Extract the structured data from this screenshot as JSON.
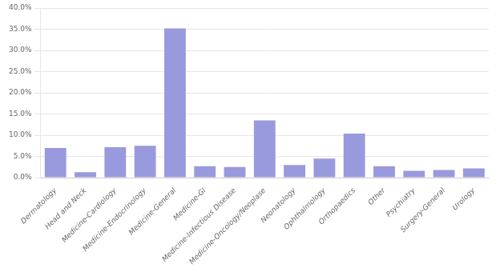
{
  "chart_data": {
    "type": "bar",
    "categories": [
      "Dermatology",
      "Head and Neck",
      "Medicine-Cardiology",
      "Medicine-Endocrinology",
      "Medicine-General",
      "Medicine-GI",
      "Medicine-Infectious Disease",
      "Medicine-Oncology/Neoplase",
      "Neonatology",
      "Ophthalmology",
      "Orthopaedics",
      "Other",
      "Psychiatry",
      "Surgery-General",
      "Urology"
    ],
    "values": [
      0.07,
      0.013,
      0.072,
      0.075,
      0.352,
      0.027,
      0.025,
      0.135,
      0.03,
      0.045,
      0.104,
      0.027,
      0.016,
      0.018,
      0.022
    ],
    "color": "#9999dd",
    "ylim": [
      0,
      0.4
    ],
    "yticks": [
      {
        "value": 0.0,
        "label": "0.0%"
      },
      {
        "value": 0.05,
        "label": "5.0%"
      },
      {
        "value": 0.1,
        "label": "10.0%"
      },
      {
        "value": 0.15,
        "label": "15.0%"
      },
      {
        "value": 0.2,
        "label": "20.0%"
      },
      {
        "value": 0.25,
        "label": "25.0%"
      },
      {
        "value": 0.3,
        "label": "30.0%"
      },
      {
        "value": 0.35,
        "label": "35.0%"
      },
      {
        "value": 0.4,
        "label": "40.0%"
      }
    ],
    "grid": true
  }
}
